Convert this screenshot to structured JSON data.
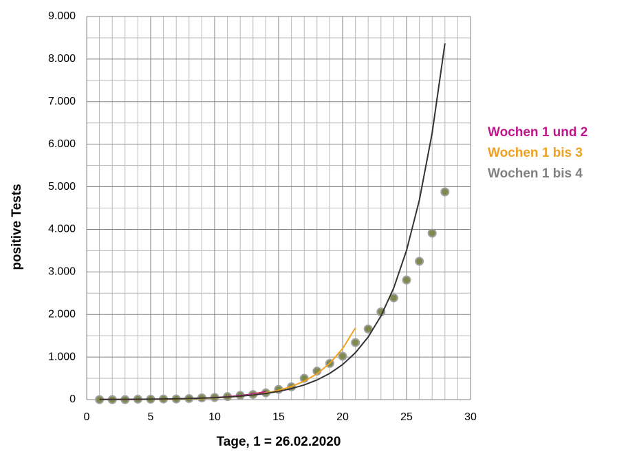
{
  "chart_data": {
    "type": "scatter",
    "xlabel": "Tage, 1 = 26.02.2020",
    "ylabel": "positive Tests",
    "xlim": [
      0,
      30
    ],
    "xticks": [
      0,
      5,
      10,
      15,
      20,
      25,
      30
    ],
    "ylim": [
      0,
      9000
    ],
    "yticks": [
      0,
      {
        "value": 1000,
        "label": "1.000"
      },
      {
        "value": 2000,
        "label": "2.000"
      },
      {
        "value": 3000,
        "label": "3.000"
      },
      {
        "value": 4000,
        "label": "4.000"
      },
      {
        "value": 5000,
        "label": "5.000"
      },
      {
        "value": 6000,
        "label": "6.000"
      },
      {
        "value": 7000,
        "label": "7.000"
      },
      {
        "value": 8000,
        "label": "8.000"
      },
      {
        "value": 9000,
        "label": "9.000"
      }
    ],
    "grid": true,
    "legend": "right",
    "series": [
      {
        "style": "markers",
        "color": "#7d8a4e",
        "x": [
          1,
          2,
          3,
          4,
          5,
          6,
          7,
          8,
          9,
          10,
          11,
          12,
          13,
          14,
          15,
          16,
          17,
          18,
          19,
          20,
          21,
          22,
          23,
          24,
          25,
          26,
          27,
          28
        ],
        "values": [
          0,
          0,
          0,
          10,
          10,
          15,
          15,
          25,
          40,
          50,
          70,
          100,
          120,
          160,
          240,
          300,
          500,
          670,
          850,
          1020,
          1340,
          1660,
          2060,
          2390,
          2810,
          3250,
          3910,
          4880
        ]
      },
      {
        "name": "Wochen 1 und 2",
        "style": "line",
        "color": "#c0168c",
        "x": [
          1,
          2,
          3,
          4,
          5,
          6,
          7,
          8,
          9,
          10,
          11,
          12,
          13,
          14
        ],
        "values": [
          2.2,
          3.1,
          4.4,
          6.2,
          8.6,
          12.1,
          17,
          24,
          34,
          47,
          67,
          94,
          132,
          185
        ]
      },
      {
        "name": "Wochen 1 bis 3",
        "style": "line",
        "color": "#f0a020",
        "x": [
          1,
          2,
          3,
          4,
          5,
          6,
          7,
          8,
          9,
          10,
          11,
          12,
          13,
          14,
          15,
          16,
          17,
          18,
          19,
          20,
          21
        ],
        "values": [
          1.87,
          2.62,
          3.69,
          5.18,
          7.27,
          10.2,
          14.4,
          20.2,
          28.4,
          39.9,
          56,
          79,
          111,
          156,
          219,
          307,
          432,
          607,
          852,
          1197,
          1682
        ]
      },
      {
        "name": "Wochen 1 bis 4",
        "style": "line",
        "color": "#333333",
        "legend_color": "#808080",
        "x": [
          1,
          2,
          3,
          4,
          5,
          6,
          7,
          8,
          9,
          10,
          11,
          12,
          13,
          14,
          15,
          16,
          17,
          18,
          19,
          20,
          21,
          22,
          23,
          24,
          25,
          26,
          27,
          28
        ],
        "values": [
          3.33,
          4.45,
          5.95,
          7.95,
          10.6,
          14.2,
          19,
          25.4,
          33.9,
          45.3,
          60.5,
          80.9,
          108,
          144,
          193,
          258,
          345,
          461,
          616,
          823,
          1100,
          1470,
          1964,
          2624,
          3507,
          4686,
          6262,
          8368
        ]
      }
    ]
  }
}
